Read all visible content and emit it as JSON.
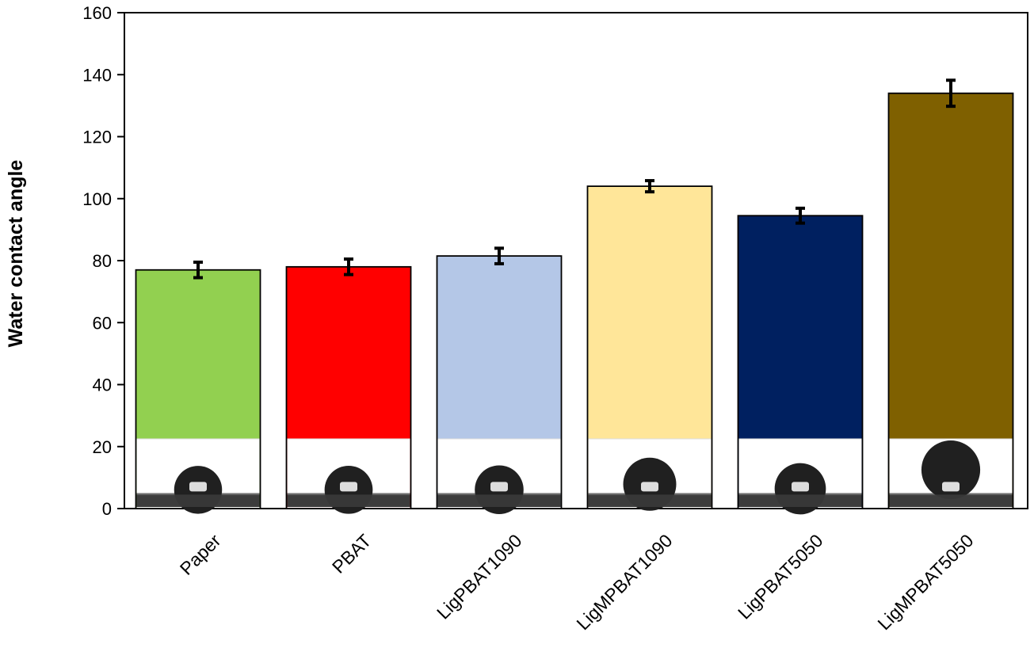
{
  "chart_data": {
    "type": "bar",
    "title": "",
    "xlabel": "",
    "ylabel": "Water contact angle",
    "ylim": [
      0,
      160
    ],
    "yticks": [
      0,
      20,
      40,
      60,
      80,
      100,
      120,
      140,
      160
    ],
    "grid": false,
    "legend": "none",
    "categories": [
      "Paper",
      "PBAT",
      "LigPBAT1090",
      "LigMPBAT1090",
      "LigPBAT5050",
      "LigMPBAT5050"
    ],
    "values": [
      77,
      78,
      81.5,
      104,
      94.5,
      134
    ],
    "errors": [
      2.5,
      2.5,
      2.5,
      1.8,
      2.4,
      4.2
    ],
    "colors": [
      "#92D050",
      "#FF0000",
      "#B4C7E7",
      "#FFE699",
      "#002060",
      "#7F6000"
    ],
    "inset_images": "water droplet photographs at bar bases"
  }
}
